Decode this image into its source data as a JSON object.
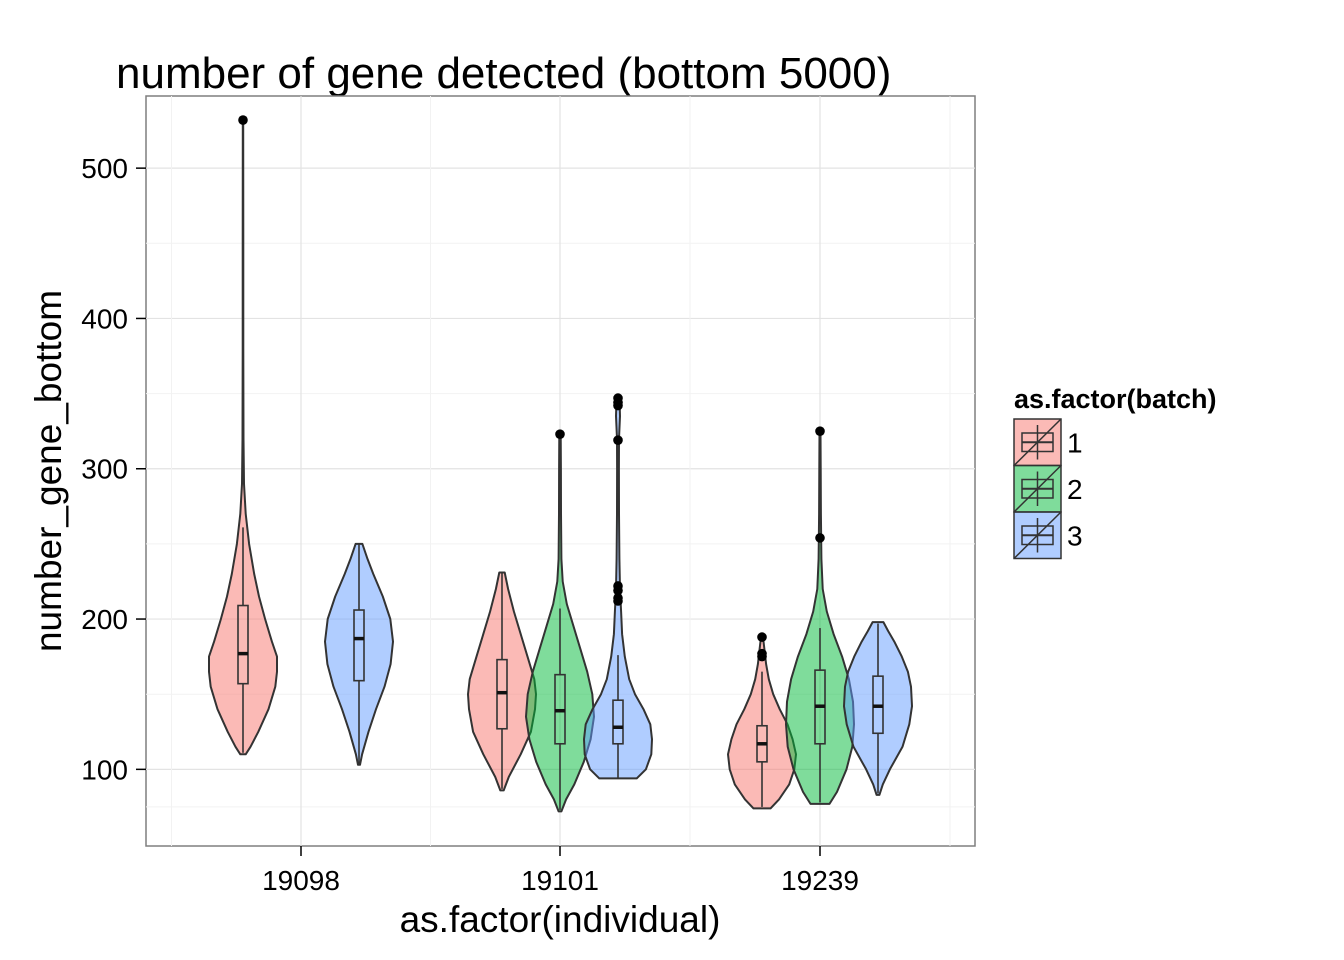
{
  "chart_data": {
    "type": "violin",
    "title": "number of gene detected (bottom 5000)",
    "xlabel": "as.factor(individual)",
    "ylabel": "number_gene_bottom",
    "categories": [
      "19098",
      "19101",
      "19239"
    ],
    "y_ticks": [
      100,
      200,
      300,
      400,
      500
    ],
    "ylim": [
      49,
      548
    ],
    "grid": true,
    "legend": {
      "title": "as.factor(batch)",
      "position": "right",
      "entries": [
        "1",
        "2",
        "3"
      ]
    },
    "colors": {
      "1": "#F8766D",
      "2": "#00BA38",
      "3": "#619CFF"
    },
    "series": [
      {
        "individual": "19098",
        "batch": "1",
        "box": {
          "q1": 157,
          "median": 177,
          "q3": 209,
          "whisker_low": 111,
          "whisker_high": 261
        },
        "range": [
          110,
          532
        ],
        "outliers": [
          532
        ],
        "shape": [
          [
            110,
            0.08
          ],
          [
            115,
            0.22
          ],
          [
            125,
            0.45
          ],
          [
            140,
            0.75
          ],
          [
            155,
            0.95
          ],
          [
            165,
            1.0
          ],
          [
            175,
            1.0
          ],
          [
            185,
            0.85
          ],
          [
            200,
            0.65
          ],
          [
            215,
            0.47
          ],
          [
            230,
            0.33
          ],
          [
            250,
            0.18
          ],
          [
            270,
            0.08
          ],
          [
            290,
            0.03
          ],
          [
            320,
            0.015
          ],
          [
            380,
            0.01
          ],
          [
            450,
            0.008
          ],
          [
            532,
            0.005
          ]
        ]
      },
      {
        "individual": "19098",
        "batch": "3",
        "box": {
          "q1": 159,
          "median": 187,
          "q3": 206,
          "whisker_low": 103,
          "whisker_high": 250
        },
        "range": [
          103,
          250
        ],
        "outliers": [],
        "shape": [
          [
            103,
            0.03
          ],
          [
            110,
            0.09
          ],
          [
            125,
            0.28
          ],
          [
            140,
            0.5
          ],
          [
            155,
            0.75
          ],
          [
            170,
            0.93
          ],
          [
            185,
            1.0
          ],
          [
            200,
            0.92
          ],
          [
            215,
            0.7
          ],
          [
            230,
            0.42
          ],
          [
            240,
            0.25
          ],
          [
            250,
            0.1
          ]
        ]
      },
      {
        "individual": "19101",
        "batch": "1",
        "box": {
          "q1": 127,
          "median": 151,
          "q3": 173,
          "whisker_low": 87,
          "whisker_high": 231
        },
        "range": [
          86,
          231
        ],
        "outliers": [],
        "shape": [
          [
            86,
            0.05
          ],
          [
            95,
            0.2
          ],
          [
            110,
            0.55
          ],
          [
            125,
            0.85
          ],
          [
            140,
            0.97
          ],
          [
            150,
            1.0
          ],
          [
            160,
            0.95
          ],
          [
            175,
            0.75
          ],
          [
            190,
            0.55
          ],
          [
            205,
            0.35
          ],
          [
            220,
            0.18
          ],
          [
            231,
            0.08
          ]
        ]
      },
      {
        "individual": "19101",
        "batch": "2",
        "box": {
          "q1": 117,
          "median": 139,
          "q3": 163,
          "whisker_low": 73,
          "whisker_high": 207
        },
        "range": [
          72,
          323
        ],
        "outliers": [
          323
        ],
        "shape": [
          [
            72,
            0.04
          ],
          [
            80,
            0.18
          ],
          [
            90,
            0.42
          ],
          [
            105,
            0.7
          ],
          [
            120,
            0.9
          ],
          [
            135,
            1.0
          ],
          [
            150,
            0.95
          ],
          [
            165,
            0.8
          ],
          [
            180,
            0.6
          ],
          [
            195,
            0.4
          ],
          [
            210,
            0.2
          ],
          [
            225,
            0.08
          ],
          [
            240,
            0.04
          ],
          [
            270,
            0.03
          ],
          [
            300,
            0.025
          ],
          [
            323,
            0.02
          ]
        ]
      },
      {
        "individual": "19101",
        "batch": "3",
        "box": {
          "q1": 117,
          "median": 128,
          "q3": 146,
          "whisker_low": 94,
          "whisker_high": 176
        },
        "range": [
          94,
          347
        ],
        "outliers": [
          347,
          344,
          342,
          319,
          222,
          219,
          214,
          212
        ],
        "shape": [
          [
            94,
            0.55
          ],
          [
            100,
            0.82
          ],
          [
            110,
            0.98
          ],
          [
            120,
            1.0
          ],
          [
            130,
            0.95
          ],
          [
            140,
            0.75
          ],
          [
            150,
            0.5
          ],
          [
            160,
            0.33
          ],
          [
            175,
            0.2
          ],
          [
            190,
            0.12
          ],
          [
            205,
            0.09
          ],
          [
            220,
            0.06
          ],
          [
            240,
            0.04
          ],
          [
            270,
            0.03
          ],
          [
            300,
            0.025
          ],
          [
            320,
            0.03
          ],
          [
            335,
            0.06
          ],
          [
            342,
            0.05
          ],
          [
            347,
            0.02
          ]
        ]
      },
      {
        "individual": "19239",
        "batch": "1",
        "box": {
          "q1": 105,
          "median": 117,
          "q3": 129,
          "whisker_low": 75,
          "whisker_high": 165
        },
        "range": [
          74,
          188
        ],
        "outliers": [
          188,
          177,
          175
        ],
        "shape": [
          [
            74,
            0.25
          ],
          [
            80,
            0.5
          ],
          [
            90,
            0.8
          ],
          [
            100,
            0.95
          ],
          [
            110,
            1.0
          ],
          [
            120,
            0.9
          ],
          [
            130,
            0.75
          ],
          [
            140,
            0.52
          ],
          [
            150,
            0.33
          ],
          [
            160,
            0.2
          ],
          [
            170,
            0.12
          ],
          [
            180,
            0.07
          ],
          [
            188,
            0.03
          ]
        ]
      },
      {
        "individual": "19239",
        "batch": "2",
        "box": {
          "q1": 117,
          "median": 142,
          "q3": 166,
          "whisker_low": 78,
          "whisker_high": 194
        },
        "range": [
          77,
          325
        ],
        "outliers": [
          325,
          254
        ],
        "shape": [
          [
            77,
            0.28
          ],
          [
            85,
            0.5
          ],
          [
            100,
            0.78
          ],
          [
            115,
            0.95
          ],
          [
            130,
            1.0
          ],
          [
            145,
            0.97
          ],
          [
            160,
            0.85
          ],
          [
            175,
            0.65
          ],
          [
            190,
            0.4
          ],
          [
            205,
            0.2
          ],
          [
            220,
            0.08
          ],
          [
            240,
            0.04
          ],
          [
            270,
            0.025
          ],
          [
            300,
            0.02
          ],
          [
            325,
            0.015
          ]
        ]
      },
      {
        "individual": "19239",
        "batch": "3",
        "box": {
          "q1": 124,
          "median": 142,
          "q3": 162,
          "whisker_low": 84,
          "whisker_high": 197
        },
        "range": [
          83,
          198
        ],
        "outliers": [],
        "shape": [
          [
            83,
            0.04
          ],
          [
            90,
            0.14
          ],
          [
            100,
            0.35
          ],
          [
            115,
            0.72
          ],
          [
            130,
            0.92
          ],
          [
            142,
            1.0
          ],
          [
            155,
            0.97
          ],
          [
            165,
            0.88
          ],
          [
            175,
            0.7
          ],
          [
            185,
            0.48
          ],
          [
            192,
            0.3
          ],
          [
            198,
            0.16
          ]
        ]
      }
    ]
  }
}
